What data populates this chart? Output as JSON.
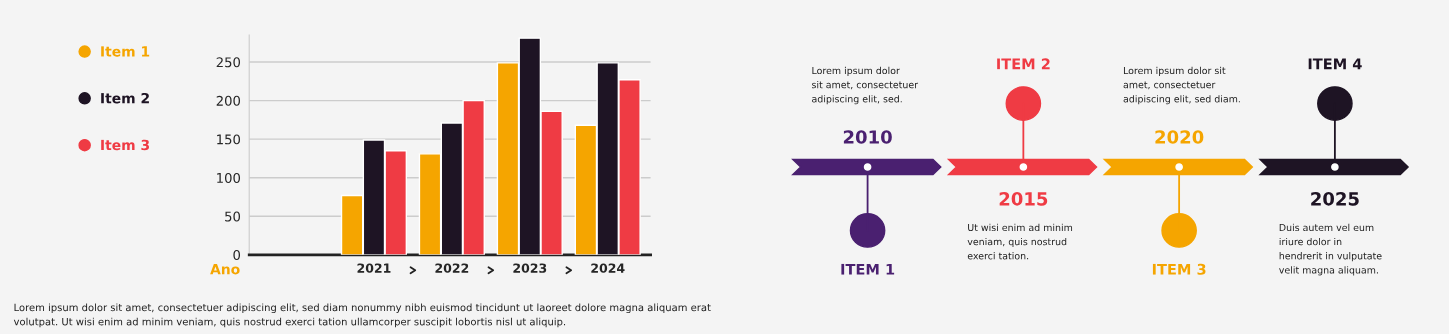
{
  "chart_data": [
    {
      "type": "bar",
      "categories": [
        "2021",
        "2022",
        "2023",
        "2024"
      ],
      "xlabel": "Ano",
      "series": [
        {
          "name": "Item 1",
          "color": "#f5a500",
          "values": [
            77,
            131,
            249,
            168
          ]
        },
        {
          "name": "Item 2",
          "color": "#1e1424",
          "values": [
            149,
            171,
            281,
            249
          ]
        },
        {
          "name": "Item 3",
          "color": "#ef3b44",
          "values": [
            135,
            200,
            186,
            227
          ]
        }
      ],
      "ylim": [
        0,
        285
      ],
      "yticks": [
        0,
        50,
        100,
        150,
        200,
        250
      ],
      "grid": "y",
      "legend": "left",
      "annotations": [
        "Lorem ipsum dolor sit amet, consectetuer adipiscing elit, sed diam nonummy nibh euismod tincidunt ut laoreet dolore magna aliquam erat volutpat. Ut wisi enim ad minim veniam, quis nostrud exerci tation ullamcorper suscipit lobortis nisl ut aliquip."
      ]
    },
    {
      "type": "other",
      "categories": [
        "2010",
        "2015",
        "2020",
        "2025"
      ],
      "colors": [
        "#4a2070",
        "#ef3b44",
        "#f5a500",
        "#1e1424"
      ],
      "annotations": [
        "ITEM 1",
        "ITEM 2",
        "ITEM 3",
        "ITEM 4",
        "Lorem ipsum dolor\nsit amet, consectetuer\nadipiscing elit, sed.",
        "Ut wisi enim ad minim\nveniam, quis nostrud\nexerci tation.",
        "Lorem ipsum dolor sit\namet, consectetuer\nadipiscing elit, sed diam.",
        "Duis autem vel eum\niriure dolor in\nhendrerit in vulputate\nvelit magna aliquam."
      ]
    }
  ]
}
